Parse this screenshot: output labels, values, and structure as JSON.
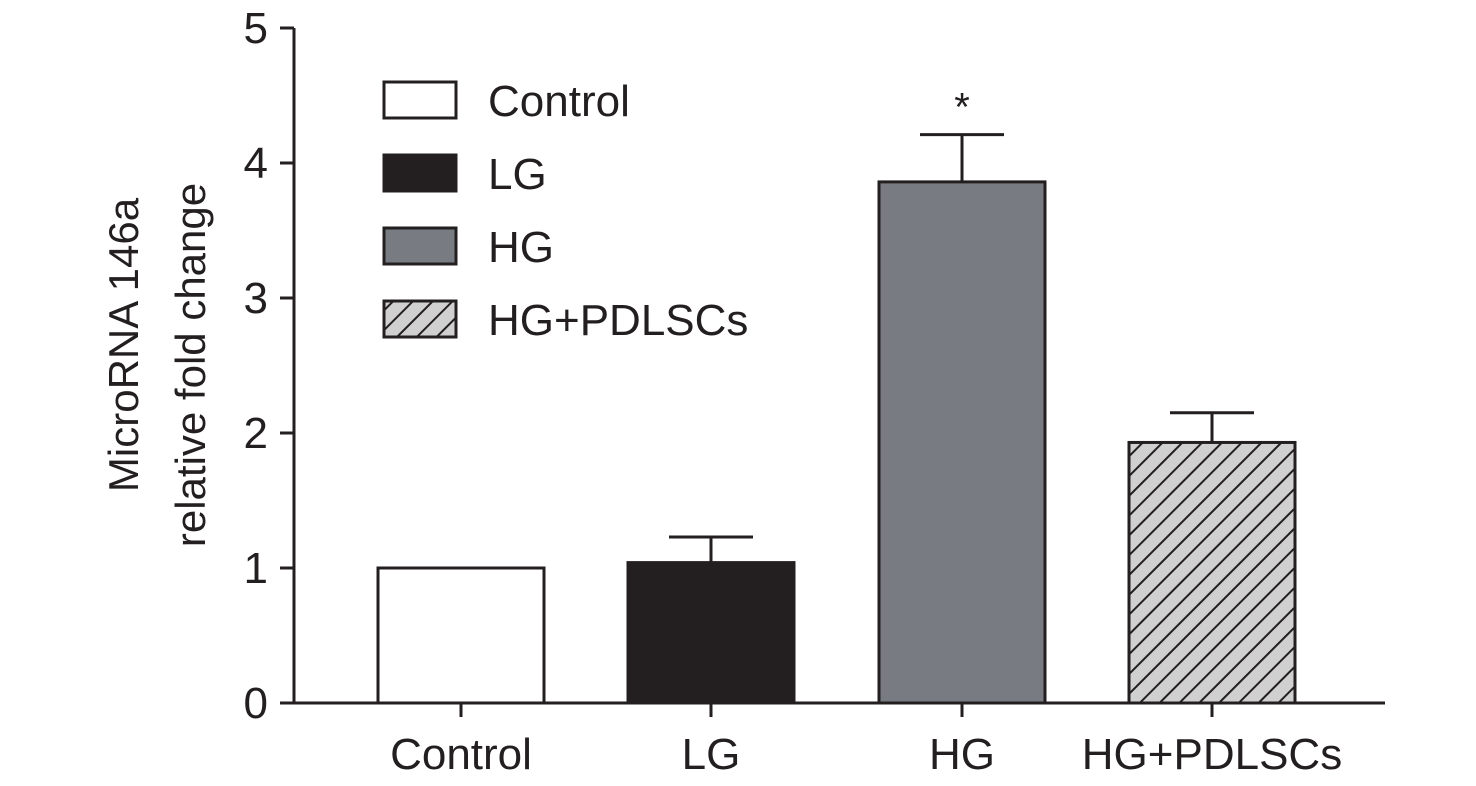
{
  "chart_data": {
    "type": "bar",
    "categories": [
      "Control",
      "LG",
      "HG",
      "HG+PDLSCs"
    ],
    "values": [
      1.0,
      1.04,
      3.86,
      1.93
    ],
    "errors": [
      0,
      0.19,
      0.35,
      0.22
    ],
    "annotations": [
      "",
      "",
      "*",
      ""
    ],
    "ylabel": [
      "MicroRNA 146a",
      "relative fold change"
    ],
    "ylim": [
      0,
      5
    ],
    "yticks": [
      0,
      1,
      2,
      3,
      4,
      5
    ],
    "grid": false,
    "legend": {
      "placement": "top-left",
      "entries": [
        "Control",
        "LG",
        "HG",
        "HG+PDLSCs"
      ]
    },
    "colors": [
      "#ffffff",
      "#231f20",
      "#797b83",
      "#d0d0d0"
    ],
    "fills": [
      "solid",
      "solid",
      "solid",
      "hatched"
    ]
  }
}
